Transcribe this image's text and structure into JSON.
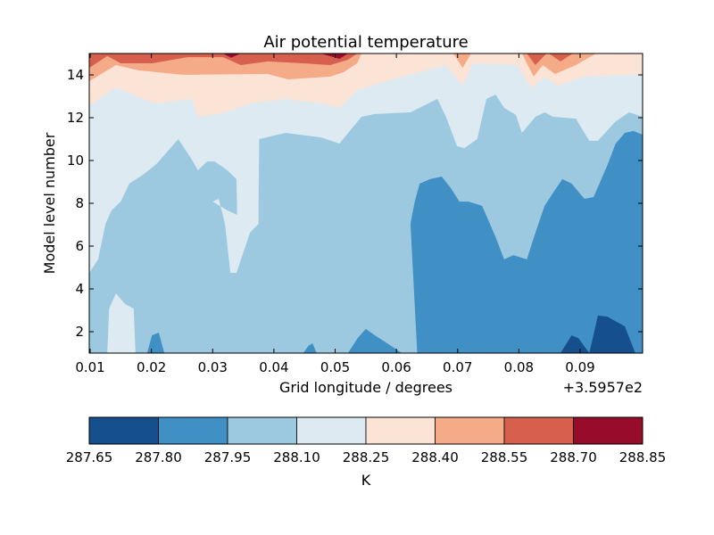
{
  "chart_data": {
    "type": "contourf",
    "title": "Air potential temperature",
    "xlabel": "Grid longitude / degrees",
    "ylabel": "Model level number",
    "x_offset_label": "+3.5957e2",
    "xlim": [
      0.00985,
      0.1002
    ],
    "ylim": [
      1,
      15
    ],
    "xticks": [
      "0.01",
      "0.02",
      "0.03",
      "0.04",
      "0.05",
      "0.06",
      "0.07",
      "0.08",
      "0.09"
    ],
    "xtick_values": [
      0.01,
      0.02,
      0.03,
      0.04,
      0.05,
      0.06,
      0.07,
      0.08,
      0.09
    ],
    "yticks": [
      "2",
      "4",
      "6",
      "8",
      "10",
      "12",
      "14"
    ],
    "ytick_values": [
      2,
      4,
      6,
      8,
      10,
      12,
      14
    ],
    "colorbar": {
      "label": "K",
      "levels": [
        "287.65",
        "287.80",
        "287.95",
        "288.10",
        "288.25",
        "288.40",
        "288.55",
        "288.70",
        "288.85"
      ],
      "colors": [
        "#154f8d",
        "#4090c5",
        "#9dc9e0",
        "#ddeaf2",
        "#fbe3d6",
        "#f5aa88",
        "#d6604d",
        "#960c2a"
      ]
    },
    "background_band": 6,
    "regions": [
      {
        "band": 7,
        "points": [
          [
            0.0317,
            15
          ],
          [
            0.033,
            14.8
          ],
          [
            0.0346,
            15
          ]
        ]
      },
      {
        "band": 7,
        "points": [
          [
            0.0477,
            15
          ],
          [
            0.0507,
            14.75
          ],
          [
            0.0521,
            15
          ]
        ]
      },
      {
        "band": 5,
        "points": [
          [
            0.00985,
            14.33
          ],
          [
            0.0128,
            14.88
          ],
          [
            0.015,
            14.54
          ],
          [
            0.0201,
            14.54
          ],
          [
            0.0259,
            14.83
          ],
          [
            0.0317,
            14.83
          ],
          [
            0.0346,
            14.46
          ],
          [
            0.039,
            14.63
          ],
          [
            0.0448,
            14.54
          ],
          [
            0.0492,
            14.46
          ],
          [
            0.0521,
            14.71
          ],
          [
            0.0536,
            15
          ],
          [
            0.1002,
            15
          ],
          [
            0.1002,
            1
          ],
          [
            0.00985,
            1
          ]
        ]
      },
      {
        "band": 6,
        "points": [
          [
            0.0813,
            15
          ],
          [
            0.0827,
            14.46
          ],
          [
            0.0845,
            15
          ]
        ]
      },
      {
        "band": 6,
        "points": [
          [
            0.0849,
            15
          ],
          [
            0.0868,
            14.63
          ],
          [
            0.0888,
            15
          ]
        ]
      },
      {
        "band": 4,
        "points": [
          [
            0.00985,
            13.71
          ],
          [
            0.0142,
            14.46
          ],
          [
            0.018,
            14.21
          ],
          [
            0.0281,
            13.92
          ],
          [
            0.0236,
            14.0
          ],
          [
            0.039,
            14.04
          ],
          [
            0.0423,
            13.79
          ],
          [
            0.0492,
            13.92
          ],
          [
            0.0514,
            14.13
          ],
          [
            0.0536,
            14.54
          ],
          [
            0.0543,
            15
          ],
          [
            0.0693,
            15
          ],
          [
            0.0708,
            14.33
          ],
          [
            0.0722,
            15
          ],
          [
            0.0805,
            15
          ],
          [
            0.0824,
            13.92
          ],
          [
            0.0839,
            14.46
          ],
          [
            0.0859,
            14.04
          ],
          [
            0.0893,
            14.46
          ],
          [
            0.0926,
            15
          ],
          [
            0.1002,
            15
          ],
          [
            0.1002,
            1
          ],
          [
            0.00985,
            1
          ]
        ]
      },
      {
        "band": 3,
        "points": [
          [
            0.00985,
            12.54
          ],
          [
            0.0142,
            13.42
          ],
          [
            0.0186,
            12.88
          ],
          [
            0.0208,
            12.67
          ],
          [
            0.0266,
            12.88
          ],
          [
            0.0276,
            12.04
          ],
          [
            0.0317,
            12.21
          ],
          [
            0.0361,
            12.67
          ],
          [
            0.0419,
            12.88
          ],
          [
            0.0477,
            12.67
          ],
          [
            0.0507,
            12.46
          ],
          [
            0.0536,
            13.29
          ],
          [
            0.0609,
            13.92
          ],
          [
            0.0681,
            14.46
          ],
          [
            0.0708,
            13.5
          ],
          [
            0.0725,
            14.54
          ],
          [
            0.0798,
            14.46
          ],
          [
            0.082,
            13.38
          ],
          [
            0.0842,
            13.92
          ],
          [
            0.0864,
            13.5
          ],
          [
            0.0907,
            13.92
          ],
          [
            0.1002,
            14.04
          ],
          [
            0.1002,
            1
          ],
          [
            0.00985,
            1
          ]
        ]
      },
      {
        "band": 2,
        "points": [
          [
            0.00985,
            4.75
          ],
          [
            0.0113,
            5.38
          ],
          [
            0.0125,
            7.04
          ],
          [
            0.0135,
            7.67
          ],
          [
            0.015,
            8.08
          ],
          [
            0.0164,
            8.92
          ],
          [
            0.0186,
            9.33
          ],
          [
            0.0208,
            9.83
          ],
          [
            0.0244,
            11.0
          ],
          [
            0.0266,
            10.04
          ],
          [
            0.0276,
            9.54
          ],
          [
            0.0291,
            9.96
          ],
          [
            0.0303,
            9.96
          ],
          [
            0.0324,
            9.54
          ],
          [
            0.0339,
            9.13
          ],
          [
            0.034,
            7.46
          ],
          [
            0.0349,
            7.25
          ],
          [
            0.0368,
            6.83
          ],
          [
            0.0375,
            8.08
          ],
          [
            0.0376,
            11.0
          ],
          [
            0.0419,
            11.29
          ],
          [
            0.0477,
            11.08
          ],
          [
            0.0507,
            10.79
          ],
          [
            0.0543,
            12.04
          ],
          [
            0.0565,
            12.17
          ],
          [
            0.0623,
            12.25
          ],
          [
            0.0667,
            12.88
          ],
          [
            0.0681,
            12.04
          ],
          [
            0.0699,
            10.67
          ],
          [
            0.0711,
            10.58
          ],
          [
            0.0732,
            11.0
          ],
          [
            0.0747,
            12.88
          ],
          [
            0.0762,
            13.08
          ],
          [
            0.0776,
            12.46
          ],
          [
            0.0795,
            12.13
          ],
          [
            0.0805,
            11.29
          ],
          [
            0.0827,
            12.04
          ],
          [
            0.0842,
            12.25
          ],
          [
            0.0856,
            12.04
          ],
          [
            0.0893,
            11.96
          ],
          [
            0.0915,
            10.92
          ],
          [
            0.0929,
            10.92
          ],
          [
            0.0958,
            11.83
          ],
          [
            0.098,
            12.25
          ],
          [
            0.1002,
            12.04
          ],
          [
            0.1002,
            1
          ],
          [
            0.00985,
            1
          ]
        ]
      },
      {
        "band": 3,
        "points": [
          [
            0.03,
            8.08
          ],
          [
            0.031,
            8.21
          ],
          [
            0.032,
            7.04
          ],
          [
            0.0329,
            4.75
          ],
          [
            0.0339,
            4.75
          ],
          [
            0.0361,
            6.63
          ],
          [
            0.0375,
            7.04
          ],
          [
            0.0375,
            8.08
          ],
          [
            0.034,
            7.46
          ],
          [
            0.0324,
            7.67
          ]
        ]
      },
      {
        "band": 3,
        "points": [
          [
            0.0128,
            1
          ],
          [
            0.0131,
            3.08
          ],
          [
            0.0142,
            3.79
          ],
          [
            0.0157,
            3.29
          ],
          [
            0.0171,
            3.08
          ],
          [
            0.0174,
            1
          ]
        ]
      },
      {
        "band": 1,
        "points": [
          [
            0.0623,
            7.04
          ],
          [
            0.063,
            8.08
          ],
          [
            0.0638,
            8.92
          ],
          [
            0.0655,
            9.13
          ],
          [
            0.0674,
            9.25
          ],
          [
            0.0689,
            8.71
          ],
          [
            0.0703,
            8.08
          ],
          [
            0.0718,
            8.08
          ],
          [
            0.074,
            7.88
          ],
          [
            0.0762,
            6.42
          ],
          [
            0.0776,
            5.38
          ],
          [
            0.0791,
            5.58
          ],
          [
            0.0813,
            5.38
          ],
          [
            0.0827,
            6.63
          ],
          [
            0.0842,
            7.88
          ],
          [
            0.0856,
            8.5
          ],
          [
            0.0871,
            9.13
          ],
          [
            0.0886,
            8.92
          ],
          [
            0.0907,
            8.21
          ],
          [
            0.0922,
            8.29
          ],
          [
            0.0944,
            9.75
          ],
          [
            0.0958,
            10.79
          ],
          [
            0.0973,
            11.29
          ],
          [
            0.0987,
            11.38
          ],
          [
            0.1002,
            11.21
          ],
          [
            0.1002,
            1
          ],
          [
            0.0634,
            1
          ]
        ]
      },
      {
        "band": 1,
        "points": [
          [
            0.0193,
            1
          ],
          [
            0.0201,
            1.83
          ],
          [
            0.0212,
            1.96
          ],
          [
            0.0221,
            1
          ]
        ]
      },
      {
        "band": 1,
        "points": [
          [
            0.0448,
            1
          ],
          [
            0.0456,
            1.33
          ],
          [
            0.0463,
            1.46
          ],
          [
            0.047,
            1
          ]
        ]
      },
      {
        "band": 1,
        "points": [
          [
            0.0521,
            1
          ],
          [
            0.0536,
            1.67
          ],
          [
            0.055,
            2.13
          ],
          [
            0.0565,
            1.83
          ],
          [
            0.0587,
            1.42
          ],
          [
            0.0609,
            1
          ]
        ]
      },
      {
        "band": 0,
        "points": [
          [
            0.0868,
            1
          ],
          [
            0.0886,
            1.83
          ],
          [
            0.0897,
            1.71
          ],
          [
            0.0915,
            1.0
          ],
          [
            0.0929,
            2.75
          ],
          [
            0.0944,
            2.71
          ],
          [
            0.0973,
            2.25
          ],
          [
            0.099,
            1
          ]
        ]
      }
    ]
  }
}
